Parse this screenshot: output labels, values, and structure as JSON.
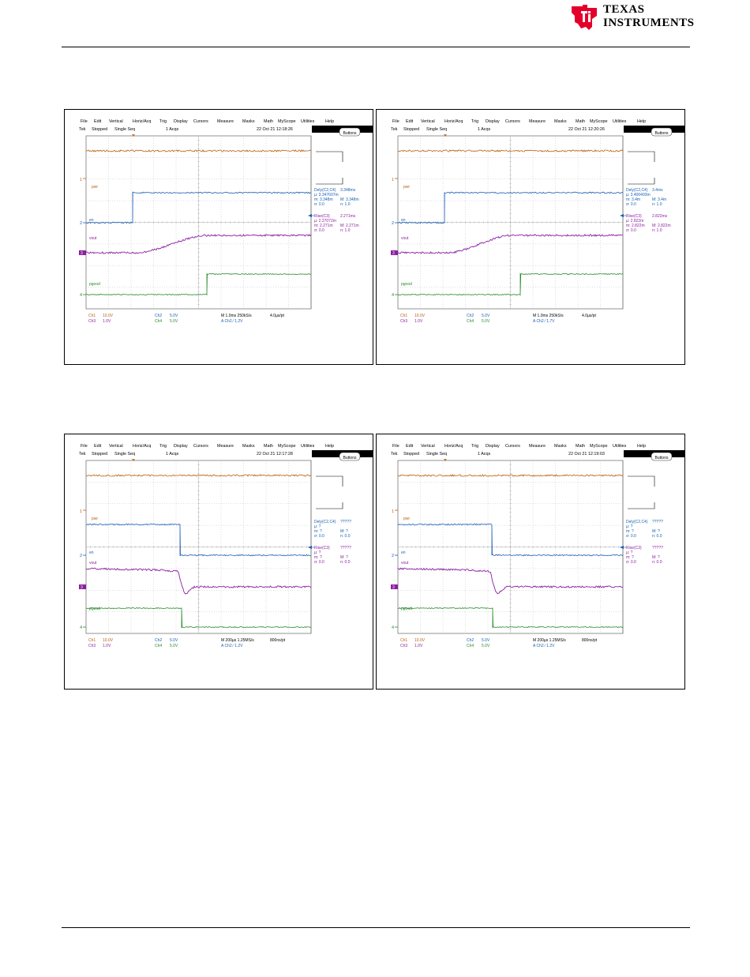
{
  "brand": {
    "logo": "Texas Instruments logo",
    "line1": "TEXAS",
    "line2": "INSTRUMENTS",
    "color": "#e4002b"
  },
  "scope_menu": [
    "File",
    "Edit",
    "Vertical",
    "Horiz/Acq",
    "Trig",
    "Display",
    "Cursors",
    "Measure",
    "Masks",
    "Math",
    "MyScope",
    "Utilities",
    "Help"
  ],
  "colors": {
    "ch1": "#b8610f",
    "ch2": "#1a5fb4",
    "ch3": "#8b1fa0",
    "ch4": "#2a8a2a",
    "grid": "#9a9a9a"
  },
  "screens": [
    {
      "tek": "Tek",
      "state": "Stopped",
      "mode": "Single Seq",
      "acqs": "1 Acqs",
      "datetime": "22 Oct 21 12:18:26",
      "buttons": "Buttons",
      "labels": {
        "pwr": "pwr",
        "en": "en",
        "vout": "vout",
        "pgood": "pgood"
      },
      "markers": {
        "m1": "1",
        "m2": "2",
        "m3": "3",
        "m4": "4"
      },
      "meas1": {
        "title": "Dely(C2,C4)",
        "value": "3.348ms",
        "mu": "µ: 3.347607m",
        "m": "m: 3.348m",
        "M": "M: 3.348m",
        "sigma": "σ: 0.0",
        "n": "n: 1.0"
      },
      "meas2": {
        "title": "Rise(C3)",
        "value": "2.271ms",
        "mu": "µ: 2.27072m",
        "m": "m: 2.271m",
        "M": "M: 2.271m",
        "sigma": "σ: 0.0",
        "n": "n: 1.0"
      },
      "footer": {
        "ch1": "Ch1",
        "ch1v": "10.0V",
        "ch2": "Ch2",
        "ch2v": "5.0V",
        "ch3": "Ch3",
        "ch3v": "1.0V",
        "ch4": "Ch4",
        "ch4v": "5.0V",
        "timebase": "M 1.0ms 250kS/s",
        "pt": "4.0µs/pt",
        "trig": "A  Ch2  ⁄  1.2V"
      }
    },
    {
      "tek": "Tek",
      "state": "Stopped",
      "mode": "Single Seq",
      "acqs": "1 Acqs",
      "datetime": "22 Oct 21 12:20:26",
      "buttons": "Buttons",
      "labels": {
        "pwr": "pwr",
        "en": "en",
        "vout": "vout",
        "pgood": "pgood"
      },
      "markers": {
        "m1": "1",
        "m2": "2",
        "m3": "3",
        "m4": "4"
      },
      "meas1": {
        "title": "Dely(C2,C4)",
        "value": "3.4ms",
        "mu": "µ: 3.400493m",
        "m": "m: 3.4m",
        "M": "M: 3.4m",
        "sigma": "σ: 0.0",
        "n": "n: 1.0"
      },
      "meas2": {
        "title": "Rise(C3)",
        "value": "2.822ms",
        "mu": "µ: 2.822m",
        "m": "m: 2.822m",
        "M": "M: 2.822m",
        "sigma": "σ: 0.0",
        "n": "n: 1.0"
      },
      "footer": {
        "ch1": "Ch1",
        "ch1v": "10.0V",
        "ch2": "Ch2",
        "ch2v": "5.0V",
        "ch3": "Ch3",
        "ch3v": "1.0V",
        "ch4": "Ch4",
        "ch4v": "5.0V",
        "timebase": "M 1.0ms 250kS/s",
        "pt": "4.0µs/pt",
        "trig": "A  Ch2  ⁄  1.7V"
      }
    },
    {
      "tek": "Tek",
      "state": "Stopped",
      "mode": "Single Seq",
      "acqs": "1 Acqs",
      "datetime": "22 Oct 21 12:17:28",
      "buttons": "Buttons",
      "labels": {
        "pwr": "pwr",
        "en": "en",
        "vout": "vout",
        "pgood": "pgood"
      },
      "markers": {
        "m1": "1",
        "m2": "2",
        "m3": "3",
        "m4": "4"
      },
      "meas1": {
        "title": "Dely(C2,C4)",
        "value": "?????",
        "mu": "µ: ?",
        "m": "m: ?",
        "M": "M: ?",
        "sigma": "σ: 0.0",
        "n": "n: 0.0"
      },
      "meas2": {
        "title": "Rise(C3)",
        "value": "?????",
        "mu": "µ: ?",
        "m": "m: ?",
        "M": "M: ?",
        "sigma": "σ: 0.0",
        "n": "n: 0.0"
      },
      "footer": {
        "ch1": "Ch1",
        "ch1v": "10.0V",
        "ch2": "Ch2",
        "ch2v": "5.0V",
        "ch3": "Ch3",
        "ch3v": "1.0V",
        "ch4": "Ch4",
        "ch4v": "5.0V",
        "timebase": "M 200µs 1.25MS/s",
        "pt": "800ns/pt",
        "trig": "A  Ch2  ⁄  1.2V"
      }
    },
    {
      "tek": "Tek",
      "state": "Stopped",
      "mode": "Single Seq",
      "acqs": "1 Acqs",
      "datetime": "22 Oct 21 12:19:03",
      "buttons": "Buttons",
      "labels": {
        "pwr": "pwr",
        "en": "en",
        "vout": "vout",
        "pgood": "pgood"
      },
      "markers": {
        "m1": "1",
        "m2": "2",
        "m3": "3",
        "m4": "4"
      },
      "meas1": {
        "title": "Dely(C2,C4)",
        "value": "?????",
        "mu": "µ: ?",
        "m": "m: ?",
        "M": "M: ?",
        "sigma": "σ: 0.0",
        "n": "n: 0.0"
      },
      "meas2": {
        "title": "Rise(C3)",
        "value": "?????",
        "mu": "µ: ?",
        "m": "m: ?",
        "M": "M: ?",
        "sigma": "σ: 0.0",
        "n": "n: 0.0"
      },
      "footer": {
        "ch1": "Ch1",
        "ch1v": "10.0V",
        "ch2": "Ch2",
        "ch2v": "5.0V",
        "ch3": "Ch3",
        "ch3v": "1.0V",
        "ch4": "Ch4",
        "ch4v": "5.0V",
        "timebase": "M 200µs 1.25MS/s",
        "pt": "800ns/pt",
        "trig": "A  Ch2  ⁄  1.2V"
      }
    }
  ]
}
